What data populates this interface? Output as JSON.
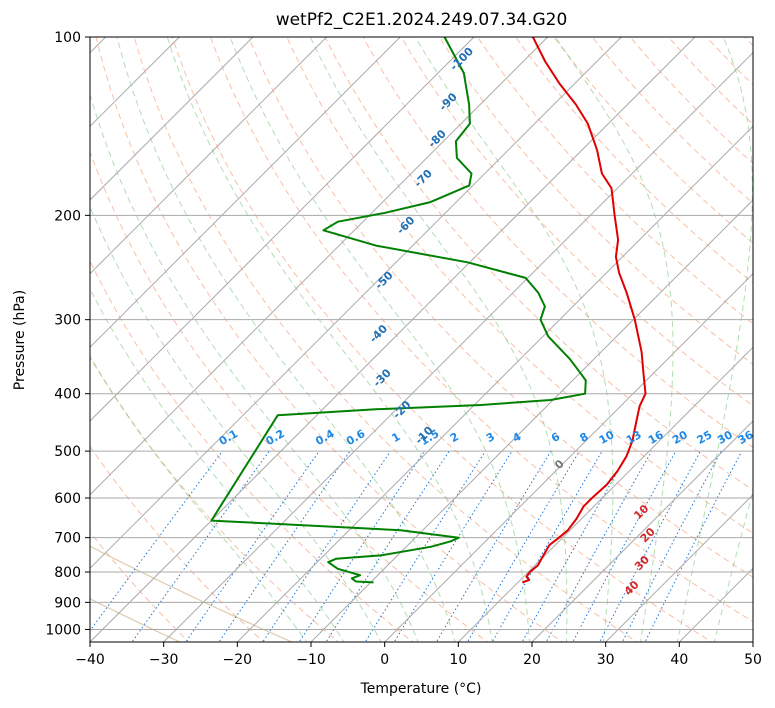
{
  "chart_data": {
    "type": "line",
    "title": "wetPf2_C2E1.2024.249.07.34.G20",
    "xlabel": "Temperature (°C)",
    "ylabel": "Pressure (hPa)",
    "xlim": [
      -40,
      50
    ],
    "ylim": [
      1050,
      100
    ],
    "y_scale": "log",
    "x_ticks": [
      -40,
      -30,
      -20,
      -10,
      0,
      10,
      20,
      30,
      40,
      50
    ],
    "x_tick_labels": [
      "−40",
      "−30",
      "−20",
      "−10",
      "0",
      "10",
      "20",
      "30",
      "40",
      "50"
    ],
    "y_ticks": [
      100,
      200,
      300,
      400,
      500,
      600,
      700,
      800,
      900,
      1000
    ],
    "y_tick_labels": [
      "100",
      "200",
      "300",
      "400",
      "500",
      "600",
      "700",
      "800",
      "900",
      "1000"
    ],
    "grid": true,
    "skew_deg": 45,
    "series": [
      {
        "color": "#e00000",
        "points": [
          [
            833,
            10.6
          ],
          [
            825,
            11.2
          ],
          [
            815,
            10.4
          ],
          [
            800,
            10.2
          ],
          [
            780,
            10.4
          ],
          [
            750,
            9.8
          ],
          [
            720,
            9.2
          ],
          [
            700,
            9.5
          ],
          [
            680,
            9.7
          ],
          [
            650,
            9.3
          ],
          [
            620,
            8.6
          ],
          [
            600,
            8.6
          ],
          [
            570,
            8.8
          ],
          [
            540,
            8.4
          ],
          [
            510,
            7.6
          ],
          [
            480,
            6.3
          ],
          [
            450,
            4.5
          ],
          [
            420,
            2.6
          ],
          [
            400,
            1.7
          ],
          [
            370,
            -1.3
          ],
          [
            340,
            -4.5
          ],
          [
            300,
            -9.8
          ],
          [
            270,
            -14.6
          ],
          [
            250,
            -18.3
          ],
          [
            235,
            -20.9
          ],
          [
            220,
            -22.9
          ],
          [
            200,
            -26.7
          ],
          [
            180,
            -30.8
          ],
          [
            170,
            -34.1
          ],
          [
            155,
            -38.0
          ],
          [
            140,
            -42.8
          ],
          [
            130,
            -47.0
          ],
          [
            120,
            -52.0
          ],
          [
            110,
            -57.0
          ],
          [
            100,
            -62.0
          ]
        ]
      },
      {
        "color": "#008000",
        "points": [
          [
            833,
            -9.6
          ],
          [
            830,
            -12.1
          ],
          [
            820,
            -13.1
          ],
          [
            810,
            -12.4
          ],
          [
            790,
            -16.3
          ],
          [
            770,
            -18.5
          ],
          [
            760,
            -17.9
          ],
          [
            750,
            -12.3
          ],
          [
            725,
            -6.6
          ],
          [
            710,
            -4.7
          ],
          [
            700,
            -4.1
          ],
          [
            680,
            -13.0
          ],
          [
            655,
            -40.0
          ],
          [
            435,
            -45.3
          ],
          [
            425,
            -32.8
          ],
          [
            418,
            -19.1
          ],
          [
            410,
            -10.3
          ],
          [
            400,
            -6.5
          ],
          [
            380,
            -8.2
          ],
          [
            370,
            -9.8
          ],
          [
            350,
            -13.2
          ],
          [
            320,
            -19.3
          ],
          [
            300,
            -22.6
          ],
          [
            285,
            -23.8
          ],
          [
            270,
            -26.6
          ],
          [
            255,
            -30.3
          ],
          [
            240,
            -40.3
          ],
          [
            225,
            -55.0
          ],
          [
            212,
            -64.2
          ],
          [
            205,
            -63.4
          ],
          [
            198,
            -58.2
          ],
          [
            190,
            -53.5
          ],
          [
            178,
            -50.5
          ],
          [
            170,
            -51.8
          ],
          [
            160,
            -55.9
          ],
          [
            150,
            -58.3
          ],
          [
            140,
            -58.8
          ],
          [
            130,
            -61.5
          ],
          [
            115,
            -66.5
          ],
          [
            100,
            -74.0
          ]
        ]
      }
    ],
    "mixing_ratio_labels": [
      "0.1",
      "0.2",
      "0.4",
      "0.6",
      "1",
      "1.5",
      "2",
      "3",
      "4",
      "6",
      "8",
      "10",
      "13",
      "16",
      "20",
      "25",
      "30",
      "36"
    ],
    "mixing_ratio_values": [
      0.1,
      0.2,
      0.4,
      0.6,
      1,
      1.5,
      2,
      3,
      4,
      6,
      8,
      10,
      13,
      16,
      20,
      25,
      30,
      36
    ],
    "moist_adiabat_labels": [
      "-100",
      "-90",
      "-80",
      "-70",
      "-60",
      "-50",
      "-40",
      "-30",
      "-20",
      "-10"
    ],
    "red_labels": [
      "10",
      "20",
      "30",
      "40"
    ],
    "gray_label": "0"
  }
}
